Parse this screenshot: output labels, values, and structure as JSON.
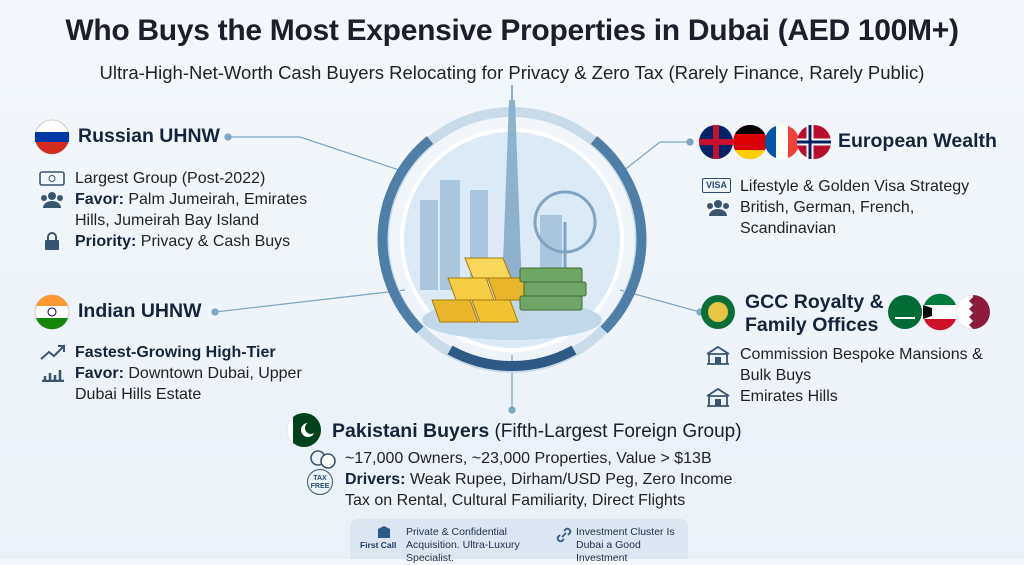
{
  "header": {
    "title": "Who Buys the Most Expensive Properties in Dubai (AED 100M+)",
    "subtitle": "Ultra-High-Net-Worth Cash Buyers Relocating for Privacy & Zero Tax (Rarely Finance, Rarely Public)"
  },
  "groups": [
    {
      "title": "Russian UHNW",
      "items": [
        {
          "text": "Largest Group (Post-2022)"
        },
        {
          "label": "Favor:",
          "text": "Palm Jumeirah, Emirates Hills, Jumeirah Bay Island"
        },
        {
          "label": "Priority:",
          "text": "Privacy & Cash Buys"
        }
      ]
    },
    {
      "title": "Indian UHNW",
      "items": [
        {
          "label": "Fastest-Growing High-Tier"
        },
        {
          "label": "Favor:",
          "text": "Downtown Dubai, Upper Dubai Hills Estate"
        }
      ]
    },
    {
      "title": "European Wealth",
      "items": [
        {
          "badge": "VISA",
          "text": "Lifestyle & Golden Visa Strategy"
        },
        {
          "text": "British, German, French, Scandinavian"
        }
      ]
    },
    {
      "title": "GCC Royalty & Family Offices",
      "items": [
        {
          "text": "Commission Bespoke Mansions & Bulk Buys"
        },
        {
          "text": "Emirates Hills"
        }
      ]
    },
    {
      "title": "Pakistani Buyers",
      "note": "(Fifth-Largest Foreign Group)",
      "items": [
        {
          "text": "~17,000 Owners, ~23,000 Properties, Value > $13B"
        },
        {
          "badge": "TAX FREE",
          "label": "Drivers:",
          "text": "Weak Rupee, Dirham/USD Peg, Zero Income Tax on Rental, Cultural Familiarity, Direct Flights"
        }
      ]
    }
  ],
  "footer": {
    "brand": "First Call",
    "notes": [
      "Private & Confidential Acquisition. Ultra-Luxury Specialist.",
      "Investment Cluster Is Dubai a Good Investment"
    ]
  }
}
